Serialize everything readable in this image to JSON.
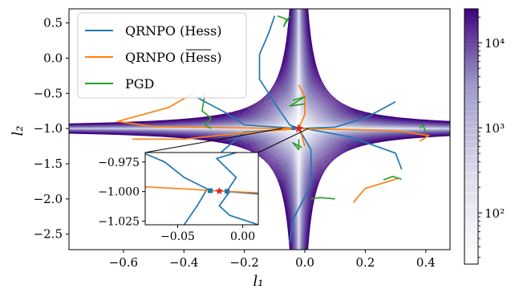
{
  "chart_data": {
    "type": "line",
    "xlabel": "l₁",
    "ylabel": "l₂",
    "xlim": [
      -0.78,
      0.48
    ],
    "ylim": [
      -2.72,
      0.7
    ],
    "x_ticks": [
      -0.6,
      -0.4,
      -0.2,
      0.0,
      0.2,
      0.4
    ],
    "x_tick_labels": [
      "−0.6",
      "−0.4",
      "−0.2",
      "0.0",
      "0.2",
      "0.4"
    ],
    "y_ticks": [
      0.5,
      0.0,
      -0.5,
      -1.0,
      -1.5,
      -2.0,
      -2.5
    ],
    "y_tick_labels": [
      "0.5",
      "0.0",
      "−0.5",
      "−1.0",
      "−1.5",
      "−2.0",
      "−2.5"
    ],
    "legend_position": "top-left",
    "minimum": {
      "x": -0.02,
      "y": -1.0
    },
    "series": [
      {
        "name": "QRNPO (Hess)",
        "color": "#1f77b4",
        "paths": [
          [
            [
              -0.1,
              0.6
            ],
            [
              -0.12,
              0.35
            ],
            [
              -0.15,
              0.05
            ],
            [
              -0.15,
              -0.3
            ],
            [
              -0.09,
              -0.7
            ],
            [
              -0.05,
              -0.95
            ],
            [
              -0.02,
              -1.0
            ]
          ],
          [
            [
              -0.36,
              -0.55
            ],
            [
              -0.33,
              -0.62
            ],
            [
              -0.26,
              -0.78
            ],
            [
              -0.2,
              -0.95
            ],
            [
              -0.02,
              -1.0
            ]
          ],
          [
            [
              0.3,
              -0.62
            ],
            [
              0.2,
              -0.85
            ],
            [
              0.1,
              -0.98
            ],
            [
              -0.02,
              -1.0
            ]
          ],
          [
            [
              0.32,
              -1.58
            ],
            [
              0.3,
              -1.35
            ],
            [
              0.15,
              -1.12
            ],
            [
              0.0,
              -1.0
            ]
          ],
          [
            [
              -0.05,
              -2.62
            ],
            [
              -0.04,
              -2.3
            ],
            [
              0.02,
              -1.8
            ],
            [
              0.02,
              -1.3
            ],
            [
              -0.02,
              -1.0
            ]
          ],
          [
            [
              -0.02,
              -1.0
            ],
            [
              -0.2,
              -1.05
            ],
            [
              -0.28,
              -1.35
            ],
            [
              -0.25,
              -1.75
            ],
            [
              -0.2,
              -1.95
            ]
          ]
        ]
      },
      {
        "name": "QRNPO (Hess)",
        "color": "#ff7f0e",
        "paths": [
          [
            [
              -0.37,
              -0.5
            ],
            [
              -0.45,
              -0.7
            ],
            [
              -0.62,
              -0.9
            ],
            [
              -0.5,
              -0.97
            ],
            [
              -0.25,
              -0.99
            ],
            [
              -0.02,
              -1.0
            ]
          ],
          [
            [
              -0.02,
              -1.0
            ],
            [
              0.1,
              -1.01
            ],
            [
              0.3,
              -1.03
            ],
            [
              0.41,
              -1.1
            ],
            [
              0.38,
              -1.18
            ]
          ],
          [
            [
              -0.02,
              -0.38
            ],
            [
              0.0,
              -0.55
            ],
            [
              0.0,
              -0.8
            ],
            [
              -0.02,
              -1.0
            ]
          ],
          [
            [
              -0.02,
              -1.0
            ],
            [
              -0.2,
              -1.06
            ],
            [
              -0.4,
              -1.15
            ],
            [
              -0.57,
              -1.15
            ]
          ],
          [
            [
              0.16,
              -2.05
            ],
            [
              0.2,
              -1.85
            ],
            [
              0.3,
              -1.72
            ],
            [
              0.31,
              -1.7
            ]
          ],
          [
            [
              -0.02,
              -1.0
            ],
            [
              -0.01,
              -1.1
            ],
            [
              0.0,
              -1.25
            ]
          ]
        ]
      },
      {
        "name": "PGD",
        "color": "#2ca02c",
        "paths": [
          [
            [
              -0.09,
              0.6
            ],
            [
              -0.06,
              0.55
            ],
            [
              -0.07,
              0.45
            ],
            [
              -0.05,
              0.6
            ]
          ],
          [
            [
              -0.33,
              -0.5
            ],
            [
              -0.34,
              -0.75
            ],
            [
              -0.31,
              -0.85
            ],
            [
              -0.33,
              -0.95
            ],
            [
              -0.31,
              -1.0
            ]
          ],
          [
            [
              -0.04,
              -0.6
            ],
            [
              0.0,
              -0.55
            ],
            [
              -0.05,
              -0.68
            ],
            [
              0.0,
              -0.65
            ]
          ],
          [
            [
              0.38,
              -1.0
            ],
            [
              0.39,
              -0.95
            ],
            [
              0.4,
              -1.05
            ]
          ],
          [
            [
              0.26,
              -1.73
            ],
            [
              0.29,
              -1.68
            ],
            [
              0.32,
              -1.72
            ]
          ],
          [
            [
              0.02,
              -2.0
            ],
            [
              0.05,
              -1.98
            ],
            [
              0.1,
              -2.0
            ]
          ],
          [
            [
              -0.02,
              -1.15
            ],
            [
              -0.02,
              -1.3
            ],
            [
              -0.04,
              -1.2
            ],
            [
              -0.01,
              -1.27
            ]
          ]
        ]
      }
    ],
    "inset": {
      "xlim": [
        -0.075,
        0.012
      ],
      "ylim": [
        -1.028,
        -0.967
      ],
      "x_ticks": [
        -0.05,
        0.0
      ],
      "x_tick_labels": [
        "−0.05",
        "0.00"
      ],
      "y_ticks": [
        -0.975,
        -1.0,
        -1.025
      ],
      "y_tick_labels": [
        "−0.975",
        "−1.000",
        "−1.025"
      ],
      "minimum": {
        "x": -0.018,
        "y": -0.9995
      },
      "blue_markers": [
        [
          -0.025,
          -0.9992
        ],
        [
          -0.012,
          -0.9998
        ]
      ],
      "lines": [
        {
          "color": "#1f77b4",
          "pts": [
            [
              -0.075,
              -0.968
            ],
            [
              -0.06,
              -0.975
            ],
            [
              -0.045,
              -0.988
            ],
            [
              -0.025,
              -0.999
            ]
          ]
        },
        {
          "color": "#1f77b4",
          "pts": [
            [
              -0.012,
              -0.9995
            ],
            [
              -0.005,
              -0.988
            ],
            [
              -0.02,
              -0.972
            ],
            [
              -0.005,
              -0.967
            ]
          ]
        },
        {
          "color": "#1f77b4",
          "pts": [
            [
              -0.012,
              -1.0
            ],
            [
              0.012,
              -1.002
            ]
          ]
        },
        {
          "color": "#1f77b4",
          "pts": [
            [
              -0.028,
              -0.999
            ],
            [
              -0.035,
              -1.012
            ],
            [
              -0.045,
              -1.028
            ]
          ]
        },
        {
          "color": "#1f77b4",
          "pts": [
            [
              -0.01,
              -1.0
            ],
            [
              -0.018,
              -1.012
            ],
            [
              -0.01,
              -1.02
            ],
            [
              0.012,
              -1.028
            ]
          ]
        },
        {
          "color": "#ff7f0e",
          "pts": [
            [
              -0.075,
              -0.996
            ],
            [
              -0.04,
              -0.998
            ],
            [
              -0.018,
              -0.9995
            ],
            [
              0.012,
              -1.001
            ]
          ]
        }
      ]
    }
  },
  "colorbar": {
    "scale": "log",
    "range": [
      25,
      25000
    ],
    "ticks": [
      100,
      1000,
      10000
    ],
    "tick_labels": [
      "10²",
      "10³",
      "10⁴"
    ],
    "levels": 40,
    "color_low": "#ffffff",
    "color_high": "#3f007d"
  },
  "colors": {
    "qrnpo_hess": "#1f77b4",
    "qrnpo_hess_bar": "#ff7f0e",
    "pgd": "#2ca02c",
    "minimum_star": "#d62728"
  }
}
